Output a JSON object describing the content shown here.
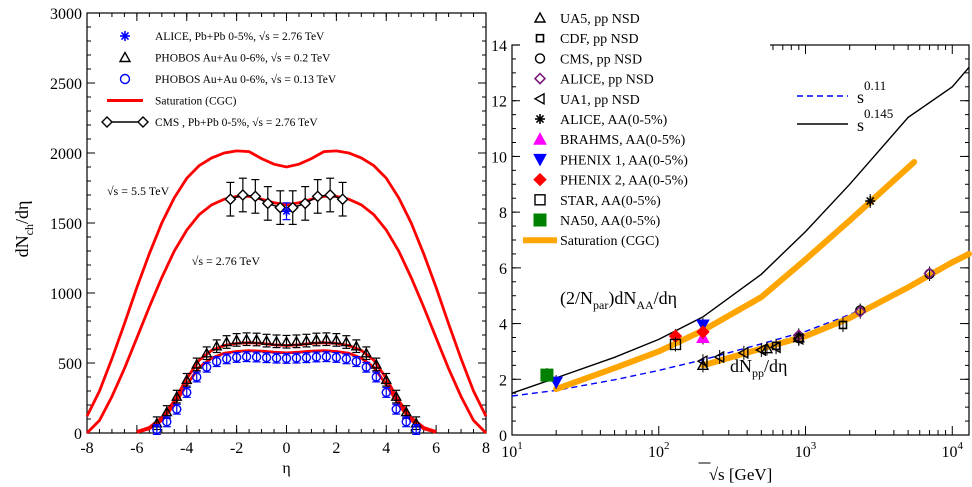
{
  "chart_data": [
    {
      "type": "line",
      "xlabel": "η",
      "ylabel": "dN",
      "ylabel_sub": "ch",
      "ylabel_tail": "/dη",
      "xlim": [
        -8,
        8
      ],
      "ylim": [
        0,
        3000
      ],
      "xticks": [
        -8,
        -6,
        -4,
        -2,
        0,
        2,
        4,
        6,
        8
      ],
      "xtick_labels": [
        "-8",
        "-6",
        "-4",
        "-2",
        "0",
        "2",
        "4",
        "6",
        "8"
      ],
      "yticks": [
        0,
        500,
        1000,
        1500,
        2000,
        2500,
        3000
      ],
      "ytick_labels": [
        "0",
        "500",
        "1000",
        "1500",
        "2000",
        "2500",
        "3000"
      ],
      "annotations": [
        {
          "prefix": "√s",
          "text": "= 5.5 TeV",
          "x": -7.2,
          "y": 1700
        },
        {
          "prefix": "√s",
          "text": "= 2.76 TeV",
          "x": -3.8,
          "y": 1200
        }
      ],
      "legend": [
        {
          "label": "ALICE, Pb+Pb 0-5%,  √s  = 2.76 TeV",
          "marker": "asterisk",
          "color": "#0000ff"
        },
        {
          "label": "PHOBOS Au+Au 0-6%, √s = 0.2 TeV",
          "marker": "triangle",
          "color": "#000000"
        },
        {
          "label": "PHOBOS Au+Au 0-6%,  √s = 0.13 TeV",
          "marker": "circle",
          "color": "#0000ff"
        },
        {
          "label": "Saturation  (CGC)",
          "marker": "line",
          "color": "#ff0000"
        },
        {
          "label": "CMS , Pb+Pb 0-5%,  √s  = 2.76 TeV",
          "marker": "diamond-line",
          "color": "#000000"
        }
      ],
      "series": [
        {
          "kind": "curve",
          "color": "#ff0000",
          "x": [
            -8,
            -7.5,
            -7,
            -6.5,
            -6,
            -5.5,
            -5,
            -4.5,
            -4,
            -3.5,
            -3,
            -2.5,
            -2,
            -1.5,
            -1,
            -0.5,
            0,
            0.5,
            1,
            1.5,
            2,
            2.5,
            3,
            3.5,
            4,
            4.5,
            5,
            5.5,
            6,
            6.5,
            7,
            7.5,
            8
          ],
          "y": [
            120,
            300,
            530,
            780,
            1040,
            1280,
            1500,
            1680,
            1820,
            1910,
            1965,
            2000,
            2015,
            2010,
            1960,
            1920,
            1900,
            1920,
            1960,
            2010,
            2015,
            2000,
            1965,
            1910,
            1820,
            1680,
            1500,
            1280,
            1040,
            780,
            530,
            300,
            120
          ]
        },
        {
          "kind": "curve",
          "color": "#ff0000",
          "x": [
            -8,
            -7.5,
            -7,
            -6.5,
            -6,
            -5.5,
            -5,
            -4.5,
            -4,
            -3.5,
            -3,
            -2.5,
            -2,
            -1.5,
            -1,
            -0.5,
            0,
            0.5,
            1,
            1.5,
            2,
            2.5,
            3,
            3.5,
            4,
            4.5,
            5,
            5.5,
            6,
            6.5,
            7,
            7.5,
            8
          ],
          "y": [
            0,
            90,
            260,
            460,
            680,
            900,
            1110,
            1300,
            1450,
            1560,
            1630,
            1670,
            1690,
            1690,
            1670,
            1645,
            1630,
            1645,
            1670,
            1690,
            1690,
            1670,
            1630,
            1560,
            1450,
            1300,
            1110,
            900,
            680,
            460,
            260,
            90,
            0
          ]
        },
        {
          "kind": "curve",
          "color": "#ff0000",
          "x": [
            -6,
            -5.5,
            -5,
            -4.5,
            -4,
            -3.5,
            -3,
            -2.5,
            -2,
            -1.5,
            -1,
            -0.5,
            0,
            0.5,
            1,
            1.5,
            2,
            2.5,
            3,
            3.5,
            4,
            4.5,
            5,
            5.5,
            6
          ],
          "y": [
            10,
            40,
            110,
            230,
            390,
            520,
            590,
            625,
            640,
            645,
            640,
            630,
            625,
            630,
            640,
            645,
            640,
            625,
            590,
            520,
            390,
            230,
            110,
            40,
            10
          ]
        },
        {
          "kind": "curve",
          "color": "#ff0000",
          "x": [
            -6,
            -5.5,
            -5,
            -4.5,
            -4,
            -3.5,
            -3,
            -2.5,
            -2,
            -1.5,
            -1,
            -0.5,
            0,
            0.5,
            1,
            1.5,
            2,
            2.5,
            3,
            3.5,
            4,
            4.5,
            5,
            5.5,
            6
          ],
          "y": [
            5,
            30,
            90,
            200,
            345,
            470,
            535,
            570,
            582,
            588,
            585,
            577,
            572,
            577,
            585,
            588,
            582,
            570,
            535,
            470,
            345,
            200,
            90,
            30,
            5
          ]
        },
        {
          "kind": "points",
          "marker": "triangle",
          "color": "#000000",
          "err": 45,
          "x": [
            -5.2,
            -4.8,
            -4.4,
            -4.0,
            -3.6,
            -3.2,
            -2.8,
            -2.4,
            -2.0,
            -1.6,
            -1.2,
            -0.8,
            -0.4,
            0.0,
            0.4,
            0.8,
            1.2,
            1.6,
            2.0,
            2.4,
            2.8,
            3.2,
            3.6,
            4.0,
            4.4,
            4.8,
            5.2
          ],
          "y": [
            70,
            150,
            260,
            380,
            490,
            570,
            620,
            650,
            665,
            670,
            668,
            660,
            655,
            652,
            655,
            660,
            668,
            670,
            665,
            650,
            620,
            570,
            490,
            380,
            260,
            150,
            70
          ]
        },
        {
          "kind": "points",
          "marker": "circle",
          "color": "#0000ff",
          "err": 35,
          "x": [
            -5.2,
            -4.8,
            -4.4,
            -4.0,
            -3.6,
            -3.2,
            -2.8,
            -2.4,
            -2.0,
            -1.6,
            -1.2,
            -0.8,
            -0.4,
            0.0,
            0.4,
            0.8,
            1.2,
            1.6,
            2.0,
            2.4,
            2.8,
            3.2,
            3.6,
            4.0,
            4.4,
            4.8,
            5.2
          ],
          "y": [
            25,
            80,
            170,
            290,
            400,
            470,
            510,
            530,
            540,
            545,
            543,
            538,
            535,
            533,
            535,
            538,
            543,
            545,
            540,
            530,
            510,
            470,
            400,
            290,
            170,
            80,
            25
          ]
        },
        {
          "kind": "points",
          "marker": "diamond-line",
          "color": "#000000",
          "err": 120,
          "x": [
            -2.25,
            -1.75,
            -1.25,
            -0.75,
            -0.25,
            0.25,
            0.75,
            1.25,
            1.75,
            2.25
          ],
          "y": [
            1670,
            1700,
            1690,
            1640,
            1610,
            1610,
            1640,
            1690,
            1700,
            1670
          ]
        },
        {
          "kind": "points",
          "marker": "asterisk",
          "color": "#0000ff",
          "err": 60,
          "x": [
            0
          ],
          "y": [
            1584
          ]
        }
      ]
    },
    {
      "type": "scatter",
      "x_scale": "log",
      "xlabel": "√s  [GeV]",
      "ylabel": "",
      "xlim": [
        10,
        13000
      ],
      "ylim": [
        0,
        14
      ],
      "xtick_labels": [
        {
          "base": "10",
          "exp": "1",
          "value": 10
        },
        {
          "base": "10",
          "exp": "2",
          "value": 100
        },
        {
          "base": "10",
          "exp": "3",
          "value": 1000
        },
        {
          "base": "10",
          "exp": "4",
          "value": 10000
        }
      ],
      "yticks": [
        0,
        2,
        4,
        6,
        8,
        10,
        12,
        14
      ],
      "ytick_labels": [
        "0",
        "2",
        "4",
        "6",
        "8",
        "10",
        "12",
        "14"
      ],
      "legend": [
        {
          "label": "UA5, pp NSD",
          "marker": "triangle",
          "color": "#000000"
        },
        {
          "label": "CDF, pp NSD",
          "marker": "square-small",
          "color": "#000000"
        },
        {
          "label": "CMS, pp NSD",
          "marker": "circle",
          "color": "#000000"
        },
        {
          "label": "ALICE, pp NSD",
          "marker": "diamond",
          "color": "#7a1c7a"
        },
        {
          "label": "UA1, pp NSD",
          "marker": "triangle-left",
          "color": "#000000"
        },
        {
          "label": "ALICE, AA(0-5%)",
          "marker": "asterisk",
          "color": "#000000"
        },
        {
          "label": "BRAHMS, AA(0-5%)",
          "marker": "triangle-filled",
          "color": "#ff00ff"
        },
        {
          "label": "PHENIX 1, AA(0-5%)",
          "marker": "triangle-down-filled",
          "color": "#0000ff"
        },
        {
          "label": "PHENIX 2, AA(0-5%)",
          "marker": "diamond-filled",
          "color": "#ff0000"
        },
        {
          "label": "STAR, AA(0-5%)",
          "marker": "square",
          "color": "#000000"
        },
        {
          "label": "NA50, AA(0-5%)",
          "marker": "square-filled",
          "color": "#008000"
        },
        {
          "label": "Saturation  (CGC)",
          "marker": "thick-line",
          "color": "#ffa500"
        }
      ],
      "fit_legend": [
        {
          "label": "s",
          "exp": "0.11",
          "style": "dashed",
          "color": "#0000ff"
        },
        {
          "label": "s",
          "exp": "0.145",
          "style": "solid",
          "color": "#000000"
        }
      ],
      "annotations": [
        {
          "text": "(2/N",
          "sub": "par",
          "mid": ")dN",
          "sub2": "AA",
          "tail": "/dη"
        },
        {
          "text": "dN",
          "sub": "pp",
          "mid": "/dη",
          "sub2": "",
          "tail": ""
        }
      ],
      "series": [
        {
          "kind": "curve",
          "style": "solid",
          "color": "#000000",
          "x": [
            10,
            20,
            50,
            100,
            200,
            500,
            1000,
            2000,
            5000,
            10000,
            13000
          ],
          "y": [
            1.5,
            2.05,
            2.79,
            3.43,
            4.24,
            5.77,
            7.3,
            9.0,
            11.4,
            12.5,
            13.2
          ]
        },
        {
          "kind": "curve",
          "style": "dashed",
          "color": "#0000ff",
          "x": [
            10,
            20,
            50,
            100,
            200,
            500,
            1000,
            2000,
            5000,
            10000,
            13000
          ],
          "y": [
            1.4,
            1.6,
            1.98,
            2.32,
            2.7,
            3.27,
            3.72,
            4.32,
            5.3,
            6.2,
            6.6
          ]
        },
        {
          "kind": "curve",
          "style": "thick",
          "color": "#ffa500",
          "x": [
            20,
            50,
            100,
            200,
            500,
            1000,
            2000,
            5500
          ],
          "y": [
            1.65,
            2.4,
            3.0,
            3.75,
            4.95,
            6.3,
            7.7,
            9.8
          ]
        },
        {
          "kind": "curve",
          "style": "thick",
          "color": "#ffa500",
          "x": [
            200,
            500,
            1000,
            2000,
            5000,
            10000,
            13000
          ],
          "y": [
            2.5,
            3.1,
            3.55,
            4.2,
            5.3,
            6.2,
            6.5
          ]
        },
        {
          "kind": "points",
          "marker": "triangle",
          "color": "#000000",
          "x": [
            200,
            546,
            900
          ],
          "y": [
            2.5,
            3.1,
            3.5
          ]
        },
        {
          "kind": "points",
          "marker": "square-small",
          "color": "#000000",
          "x": [
            630,
            1800
          ],
          "y": [
            3.2,
            3.95
          ]
        },
        {
          "kind": "points",
          "marker": "circle",
          "color": "#000000",
          "x": [
            900,
            2360,
            7000
          ],
          "y": [
            3.48,
            4.47,
            5.78
          ]
        },
        {
          "kind": "points",
          "marker": "diamond",
          "color": "#7a1c7a",
          "x": [
            900,
            2360,
            7000
          ],
          "y": [
            3.58,
            4.43,
            5.8
          ]
        },
        {
          "kind": "points",
          "marker": "triangle-left",
          "color": "#000000",
          "x": [
            200,
            260,
            380,
            500,
            630,
            900
          ],
          "y": [
            2.65,
            2.8,
            2.95,
            3.05,
            3.15,
            3.45
          ]
        },
        {
          "kind": "points",
          "marker": "asterisk",
          "color": "#000000",
          "x": [
            2760
          ],
          "y": [
            8.4
          ]
        },
        {
          "kind": "points",
          "marker": "triangle-filled",
          "color": "#ff00ff",
          "x": [
            200
          ],
          "y": [
            3.5
          ]
        },
        {
          "kind": "points",
          "marker": "triangle-down-filled",
          "color": "#0000ff",
          "x": [
            20,
            200
          ],
          "y": [
            1.9,
            3.95
          ]
        },
        {
          "kind": "points",
          "marker": "diamond-filled",
          "color": "#ff0000",
          "x": [
            130,
            200
          ],
          "y": [
            3.55,
            3.7
          ]
        },
        {
          "kind": "points",
          "marker": "square",
          "color": "#000000",
          "x": [
            130
          ],
          "y": [
            3.25
          ]
        },
        {
          "kind": "points",
          "marker": "square-filled",
          "color": "#008000",
          "x": [
            17.3
          ],
          "y": [
            2.15
          ]
        }
      ]
    }
  ]
}
